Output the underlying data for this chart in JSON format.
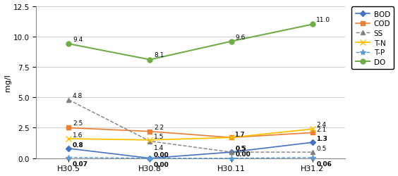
{
  "x_labels": [
    "H30.5",
    "H30.8",
    "H30.11",
    "H31.2"
  ],
  "x_positions": [
    0,
    1,
    2,
    3
  ],
  "series": {
    "BOD": {
      "values": [
        0.8,
        0.0,
        0.5,
        1.3
      ],
      "color": "#4472C4",
      "linestyle": "-",
      "marker": "D",
      "markersize": 4,
      "linewidth": 1.2
    },
    "COD": {
      "values": [
        2.5,
        2.2,
        1.7,
        2.1
      ],
      "color": "#ED7D31",
      "linestyle": "-",
      "marker": "s",
      "markersize": 4,
      "linewidth": 1.2
    },
    "SS": {
      "values": [
        4.8,
        1.4,
        0.5,
        0.5
      ],
      "color": "#808080",
      "linestyle": "--",
      "marker": "^",
      "markersize": 4,
      "linewidth": 1.0
    },
    "T-N": {
      "values": [
        1.6,
        1.5,
        1.7,
        2.4
      ],
      "color": "#FFC000",
      "linestyle": "-",
      "marker": "x",
      "markersize": 6,
      "linewidth": 1.3
    },
    "T-P": {
      "values": [
        0.07,
        0.0,
        0.0,
        0.06
      ],
      "color": "#5B9BD5",
      "linestyle": "--",
      "marker": "*",
      "markersize": 6,
      "linewidth": 1.0
    },
    "DO": {
      "values": [
        9.4,
        8.1,
        9.6,
        11.0
      ],
      "color": "#70AD47",
      "linestyle": "-",
      "marker": "o",
      "markersize": 5,
      "linewidth": 1.5
    }
  },
  "annotations": {
    "BOD": [
      [
        "0.8",
        4,
        2
      ],
      [
        "0.00",
        4,
        2
      ],
      [
        "0.5",
        4,
        2
      ],
      [
        "1.3",
        4,
        2
      ]
    ],
    "COD": [
      [
        "2.5",
        4,
        3
      ],
      [
        "2.2",
        4,
        3
      ],
      [
        "1.7",
        4,
        2
      ],
      [
        "2.1",
        4,
        2
      ]
    ],
    "SS": [
      [
        "4.8",
        4,
        3
      ],
      [
        "1.4",
        4,
        -8
      ],
      [
        "0.5",
        4,
        2
      ],
      [
        "0.5",
        4,
        2
      ]
    ],
    "T-N": [
      [
        "1.6",
        4,
        2
      ],
      [
        "1.5",
        4,
        2
      ],
      [
        "1.7",
        4,
        2
      ],
      [
        "2.4",
        4,
        3
      ]
    ],
    "T-P": [
      [
        "0.07",
        4,
        -8
      ],
      [
        "0.00",
        4,
        -8
      ],
      [
        "0.00",
        4,
        3
      ],
      [
        "0.06",
        4,
        -8
      ]
    ],
    "DO": [
      [
        "9.4",
        4,
        3
      ],
      [
        "8.1",
        4,
        3
      ],
      [
        "9.6",
        4,
        3
      ],
      [
        "11.0",
        4,
        3
      ]
    ]
  },
  "bold_series": [
    "BOD",
    "T-P"
  ],
  "ylabel": "mg/l",
  "ylim": [
    0,
    12.5
  ],
  "yticks": [
    0.0,
    2.5,
    5.0,
    7.5,
    10.0,
    12.5
  ],
  "ytick_labels": [
    "0.0",
    "2.5",
    "5.0",
    "7.5",
    "10.0",
    "12.5"
  ],
  "background_color": "#FFFFFF",
  "plot_bg_color": "#FFFFFF"
}
